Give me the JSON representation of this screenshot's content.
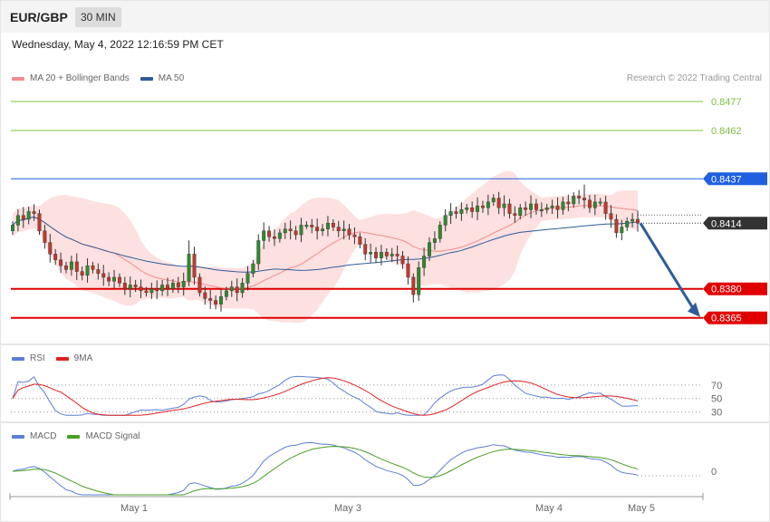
{
  "header": {
    "symbol": "EUR/GBP",
    "timeframe": "30 MIN",
    "datetime": "Wednesday, May 4, 2022 12:16:59 PM CET",
    "copyright": "Research © 2022 Trading Central"
  },
  "legend_main": [
    {
      "label": "MA 20 + Bollinger Bands",
      "color": "#f28b8b"
    },
    {
      "label": "MA 50",
      "color": "#2f5b9a"
    }
  ],
  "legend_rsi": [
    {
      "label": "RSI",
      "color": "#5b7fd6"
    },
    {
      "label": "9MA",
      "color": "#e02020"
    }
  ],
  "legend_macd": [
    {
      "label": "MACD",
      "color": "#5b7fd6"
    },
    {
      "label": "MACD Signal",
      "color": "#4aa020"
    }
  ],
  "colors": {
    "resistance_green": "#7fbf3f",
    "pivot_blue": "#1f5fe0",
    "support_red": "#e00000",
    "current_dark": "#333333",
    "candle_up": "#2e8b2e",
    "candle_down": "#c0392b",
    "band_fill": "#fde0e0",
    "arrow": "#2f5b9a"
  },
  "chart_data": [
    {
      "type": "candlestick",
      "title": "EUR/GBP 30 MIN",
      "x_ticks": [
        "May 1",
        "May 3",
        "May 4",
        "May 5"
      ],
      "ylim": [
        0.8355,
        0.8485
      ],
      "levels": [
        {
          "value": 0.8477,
          "label": "0.8477",
          "kind": "resistance"
        },
        {
          "value": 0.8462,
          "label": "0.8462",
          "kind": "resistance"
        },
        {
          "value": 0.8437,
          "label": "0.8437",
          "kind": "pivot"
        },
        {
          "value": 0.8414,
          "label": "0.8414",
          "kind": "current"
        },
        {
          "value": 0.838,
          "label": "0.8380",
          "kind": "support"
        },
        {
          "value": 0.8365,
          "label": "0.8365",
          "kind": "support"
        }
      ],
      "forecast_arrow": {
        "from": 0.8414,
        "to": 0.8365
      },
      "close_series": [
        0.8413,
        0.8418,
        0.8416,
        0.842,
        0.8419,
        0.841,
        0.8404,
        0.8398,
        0.8395,
        0.8392,
        0.839,
        0.8394,
        0.8389,
        0.8387,
        0.8392,
        0.839,
        0.8388,
        0.8386,
        0.8384,
        0.8386,
        0.8383,
        0.838,
        0.8382,
        0.8381,
        0.8379,
        0.8378,
        0.838,
        0.8379,
        0.8382,
        0.838,
        0.8383,
        0.8381,
        0.8384,
        0.8398,
        0.8386,
        0.8378,
        0.8375,
        0.8374,
        0.8372,
        0.8376,
        0.8379,
        0.8381,
        0.8378,
        0.8383,
        0.8388,
        0.8393,
        0.8405,
        0.841,
        0.8407,
        0.8406,
        0.8409,
        0.8411,
        0.841,
        0.8408,
        0.8413,
        0.8413,
        0.8412,
        0.841,
        0.8411,
        0.8414,
        0.8412,
        0.841,
        0.8411,
        0.8408,
        0.8407,
        0.8403,
        0.8398,
        0.8399,
        0.8396,
        0.8399,
        0.8397,
        0.8398,
        0.8397,
        0.8393,
        0.8386,
        0.8377,
        0.8391,
        0.8397,
        0.8404,
        0.8406,
        0.8413,
        0.8418,
        0.842,
        0.8419,
        0.8421,
        0.8422,
        0.842,
        0.8423,
        0.8422,
        0.8425,
        0.8427,
        0.8422,
        0.8424,
        0.8419,
        0.8418,
        0.8422,
        0.8421,
        0.8424,
        0.8421,
        0.8421,
        0.8422,
        0.8423,
        0.8421,
        0.8425,
        0.8424,
        0.8428,
        0.8427,
        0.8426,
        0.8422,
        0.8425,
        0.8425,
        0.8419,
        0.8416,
        0.8409,
        0.8412,
        0.8415,
        0.8416,
        0.8414
      ]
    },
    {
      "type": "line",
      "title": "RSI",
      "y_ticks": [
        70,
        50,
        30
      ],
      "series": [
        {
          "name": "RSI"
        },
        {
          "name": "9MA"
        }
      ]
    },
    {
      "type": "line",
      "title": "MACD",
      "y_ticks": [
        0
      ],
      "series": [
        {
          "name": "MACD"
        },
        {
          "name": "MACD Signal"
        }
      ]
    }
  ]
}
